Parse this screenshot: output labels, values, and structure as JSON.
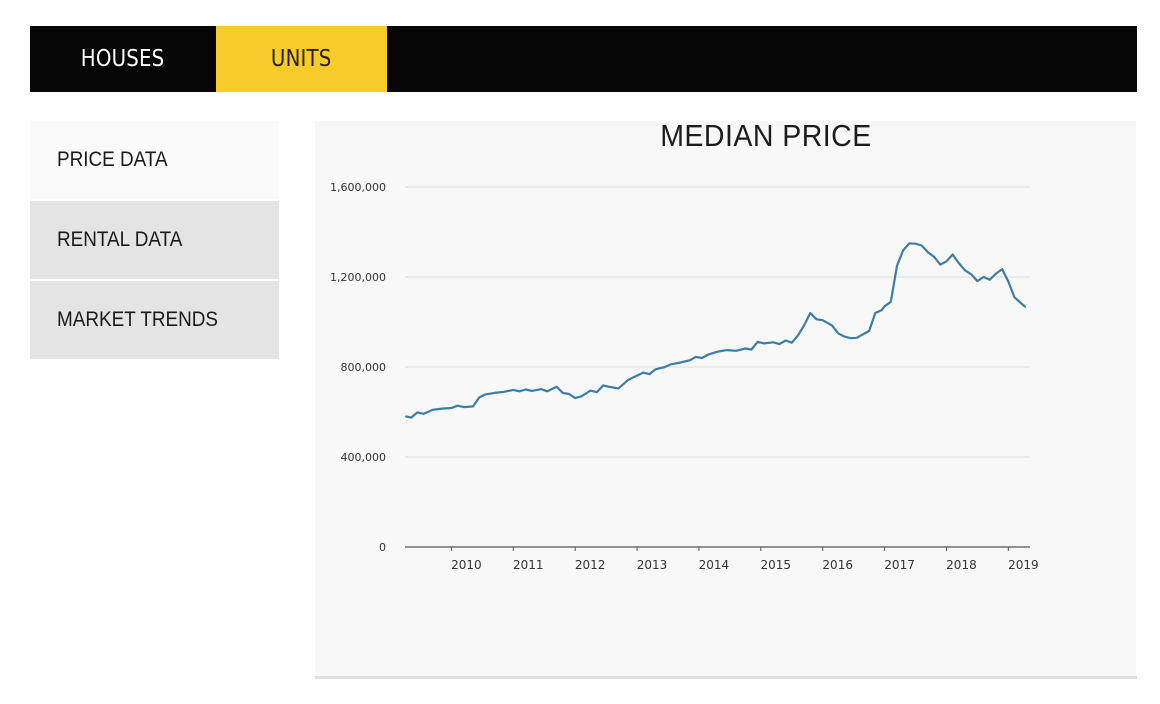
{
  "tabs": [
    {
      "label": "HOUSES",
      "active": false
    },
    {
      "label": "UNITS",
      "active": true
    }
  ],
  "sidebar": {
    "items": [
      {
        "label": "PRICE DATA",
        "active": true
      },
      {
        "label": "RENTAL DATA",
        "active": false
      },
      {
        "label": "MARKET TRENDS",
        "active": false
      }
    ]
  },
  "colors": {
    "accent": "#f7cc2a",
    "tabbar": "#050505",
    "line": "#3e7ea6"
  },
  "chart_data": {
    "type": "line",
    "title": "MEDIAN PRICE",
    "xlabel": "",
    "ylabel": "",
    "ylim": [
      0,
      1600000
    ],
    "yticks": [
      0,
      400000,
      800000,
      1200000,
      1600000
    ],
    "ytick_labels": [
      "0",
      "400,000",
      "800,000",
      "1,200,000",
      "1,600,000"
    ],
    "xlim": [
      2009.25,
      2019.35
    ],
    "xticks": [
      2010,
      2011,
      2012,
      2013,
      2014,
      2015,
      2016,
      2017,
      2018,
      2019
    ],
    "xtick_labels": [
      "2010",
      "2011",
      "2012",
      "2013",
      "2014",
      "2015",
      "2016",
      "2017",
      "2018",
      "2019"
    ],
    "grid": true,
    "series": [
      {
        "name": "Median Price",
        "x": [
          2009.27,
          2009.35,
          2009.45,
          2009.55,
          2009.7,
          2009.85,
          2010.0,
          2010.1,
          2010.2,
          2010.35,
          2010.45,
          2010.55,
          2010.7,
          2010.85,
          2011.0,
          2011.1,
          2011.2,
          2011.3,
          2011.45,
          2011.55,
          2011.7,
          2011.8,
          2011.9,
          2012.0,
          2012.1,
          2012.25,
          2012.35,
          2012.45,
          2012.55,
          2012.7,
          2012.85,
          2013.0,
          2013.1,
          2013.2,
          2013.3,
          2013.45,
          2013.55,
          2013.7,
          2013.85,
          2013.95,
          2014.05,
          2014.15,
          2014.3,
          2014.45,
          2014.6,
          2014.75,
          2014.85,
          2014.95,
          2015.05,
          2015.2,
          2015.3,
          2015.4,
          2015.5,
          2015.6,
          2015.7,
          2015.8,
          2015.9,
          2016.0,
          2016.15,
          2016.25,
          2016.35,
          2016.45,
          2016.55,
          2016.65,
          2016.75,
          2016.85,
          2016.95,
          2017.0,
          2017.1,
          2017.2,
          2017.3,
          2017.4,
          2017.5,
          2017.6,
          2017.7,
          2017.8,
          2017.9,
          2018.0,
          2018.1,
          2018.2,
          2018.3,
          2018.4,
          2018.5,
          2018.6,
          2018.7,
          2018.8,
          2018.9,
          2019.0,
          2019.1,
          2019.2,
          2019.27
        ],
        "values": [
          580000,
          575000,
          598000,
          592000,
          610000,
          615000,
          618000,
          628000,
          622000,
          625000,
          665000,
          678000,
          685000,
          690000,
          698000,
          692000,
          700000,
          694000,
          702000,
          692000,
          712000,
          685000,
          680000,
          662000,
          670000,
          695000,
          688000,
          718000,
          712000,
          705000,
          742000,
          762000,
          775000,
          768000,
          790000,
          800000,
          812000,
          820000,
          830000,
          845000,
          840000,
          855000,
          868000,
          875000,
          872000,
          882000,
          878000,
          912000,
          905000,
          910000,
          902000,
          918000,
          908000,
          940000,
          985000,
          1040000,
          1012000,
          1008000,
          985000,
          950000,
          935000,
          928000,
          930000,
          945000,
          960000,
          1040000,
          1052000,
          1070000,
          1090000,
          1250000,
          1318000,
          1350000,
          1348000,
          1340000,
          1310000,
          1290000,
          1255000,
          1270000,
          1300000,
          1262000,
          1230000,
          1212000,
          1182000,
          1200000,
          1188000,
          1215000,
          1235000,
          1180000,
          1110000,
          1085000,
          1068000
        ]
      }
    ]
  }
}
